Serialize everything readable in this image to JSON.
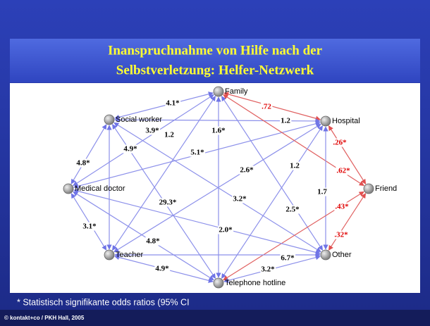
{
  "title": [
    "Inanspruchnahme von Hilfe nach der",
    "Selbstverletzung: Helfer-Netzwerk"
  ],
  "nodes": [
    {
      "label": "Family"
    },
    {
      "label": "Social worker"
    },
    {
      "label": "Hospital"
    },
    {
      "label": "Medical doctor"
    },
    {
      "label": "Friend"
    },
    {
      "label": "Teacher"
    },
    {
      "label": "Other"
    },
    {
      "label": "Telephone hotline"
    }
  ],
  "edges": [
    {
      "label": "4.1*"
    },
    {
      "label": ".72"
    },
    {
      "label": "1.2"
    },
    {
      "label": "3.9*"
    },
    {
      "label": "1.2"
    },
    {
      "label": "4.8*"
    },
    {
      "label": "4.9*"
    },
    {
      "label": "5.1*"
    },
    {
      "label": "1.6*"
    },
    {
      "label": "2.6*"
    },
    {
      "label": "1.2"
    },
    {
      "label": ".26*"
    },
    {
      "label": ".62*"
    },
    {
      "label": "29.3*"
    },
    {
      "label": "3.2*"
    },
    {
      "label": "1.7"
    },
    {
      "label": "2.5*"
    },
    {
      "label": ".43*"
    },
    {
      "label": "3.1*"
    },
    {
      "label": "4.8*"
    },
    {
      "label": "2.0*"
    },
    {
      "label": ".32*"
    },
    {
      "label": "6.7*"
    },
    {
      "label": "4.9*"
    },
    {
      "label": "3.2*"
    }
  ],
  "footnote": "* Statistisch signifikante odds ratios (95% CI",
  "copyright": "© kontakt+co / PKH Hall, 2005"
}
